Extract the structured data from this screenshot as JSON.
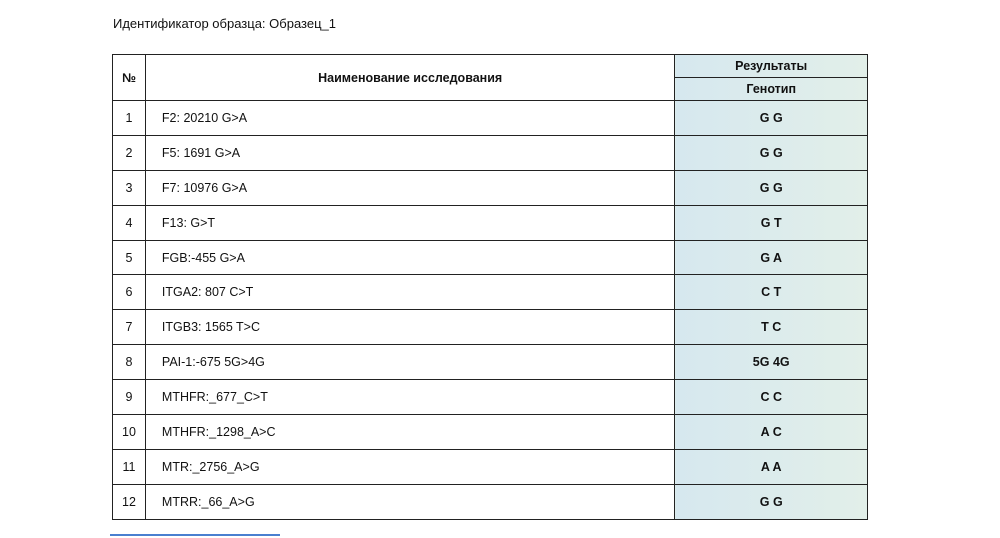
{
  "header": {
    "sample_id": "Идентификатор образца: Образец_1"
  },
  "table": {
    "columns": {
      "number": "№",
      "name": "Наименование исследования",
      "results": "Результаты",
      "genotype": "Генотип"
    },
    "rows": [
      [
        "1",
        "F2: 20210 G>A",
        "G G"
      ],
      [
        "2",
        "F5: 1691 G>A",
        "G G"
      ],
      [
        "3",
        "F7: 10976 G>A",
        "G G"
      ],
      [
        "4",
        "F13: G>T",
        "G T"
      ],
      [
        "5",
        "FGB:-455 G>A",
        "G A"
      ],
      [
        "6",
        "ITGA2: 807 C>T",
        "C T"
      ],
      [
        "7",
        "ITGB3: 1565 T>C",
        "T C"
      ],
      [
        "8",
        "PAI-1:-675 5G>4G",
        "5G 4G"
      ],
      [
        "9",
        "MTHFR:_677_C>T",
        "C C"
      ],
      [
        "10",
        "MTHFR:_1298_A>C",
        "A C"
      ],
      [
        "11",
        "MTR:_2756_A>G",
        "A A"
      ],
      [
        "12",
        "MTRR:_66_A>G",
        "G G"
      ]
    ]
  }
}
